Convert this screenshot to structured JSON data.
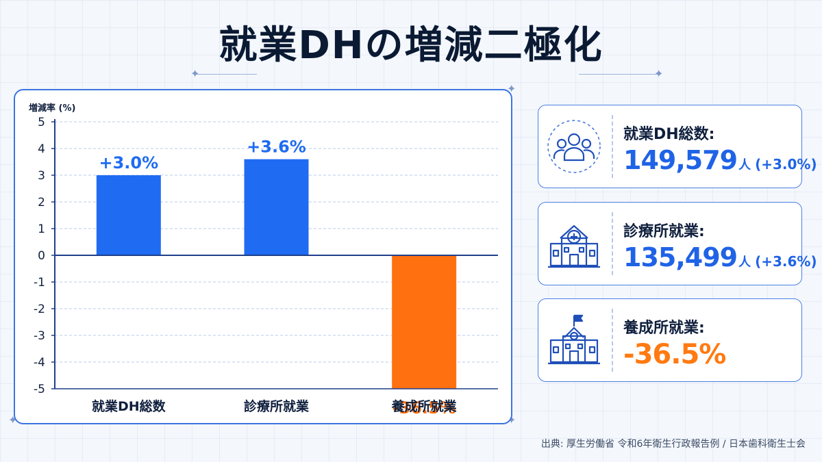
{
  "title": "就業DHの増減二極化",
  "chart_data": {
    "type": "bar",
    "ylabel": "増減率 (%)",
    "ylim": [
      -5,
      5
    ],
    "yticks": [
      5,
      4,
      3,
      2,
      1,
      0,
      -1,
      -2,
      -3,
      -4,
      -5
    ],
    "categories": [
      "就業DH総数",
      "診療所就業",
      "養成所就業"
    ],
    "values": [
      3.0,
      3.6,
      -36.5
    ],
    "data_labels": [
      "+3.0%",
      "+3.6%",
      "-36.5%"
    ],
    "bar_colors": [
      "#1f6bf2",
      "#1f6bf2",
      "#ff7010"
    ],
    "grid": true
  },
  "cards": [
    {
      "icon": "people-group-icon",
      "label": "就業DH総数:",
      "value": "149,579",
      "unit": "人",
      "change": "(+3.0%)"
    },
    {
      "icon": "clinic-building-icon",
      "label": "診療所就業:",
      "value": "135,499",
      "unit": "人",
      "change": "(+3.6%)"
    },
    {
      "icon": "school-building-icon",
      "label": "養成所就業:",
      "value": "-36.5%",
      "unit": "",
      "change": ""
    }
  ],
  "source": "出典: 厚生労働省 令和6年衛生行政報告例 / 日本歯科衛生士会",
  "colors": {
    "positive": "#1f6bf2",
    "negative": "#ff7010",
    "panel_border": "#3b73e0"
  }
}
